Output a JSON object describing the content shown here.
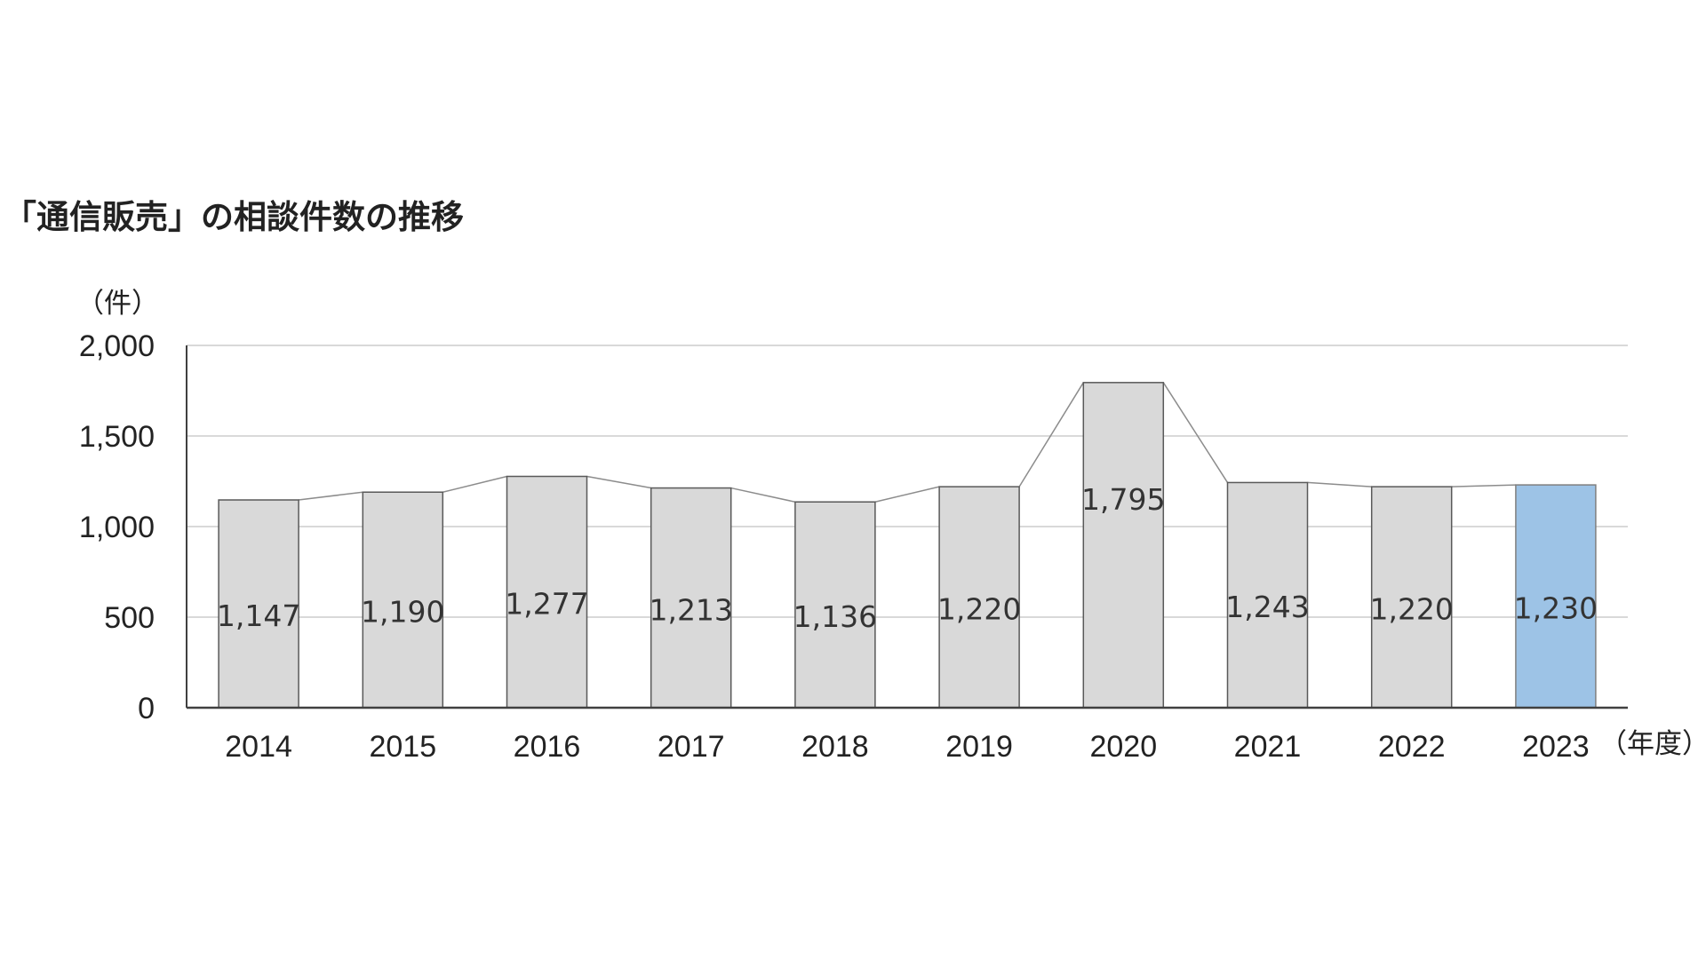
{
  "title": "「通信販売」の相談件数の推移",
  "chart_data": {
    "type": "bar",
    "title": "「通信販売」の相談件数の推移",
    "ylabel": "（件）",
    "xlabel": "（年度）",
    "categories": [
      "2014",
      "2015",
      "2016",
      "2017",
      "2018",
      "2019",
      "2020",
      "2021",
      "2022",
      "2023"
    ],
    "values": [
      1147,
      1190,
      1277,
      1213,
      1136,
      1220,
      1795,
      1243,
      1220,
      1230
    ],
    "data_labels": [
      "1,147",
      "1,190",
      "1,277",
      "1,213",
      "1,136",
      "1,220",
      "1,795",
      "1,243",
      "1,220",
      "1,230"
    ],
    "ylim": [
      0,
      2000
    ],
    "yticks": [
      0,
      500,
      1000,
      1500,
      2000
    ],
    "ytick_labels": [
      "0",
      "500",
      "1,000",
      "1,500",
      "2,000"
    ],
    "grid": true,
    "connector_lines": true,
    "colors": {
      "bar": "#d9d9d9",
      "bar_highlight": "#9dc3e6",
      "bar_border": "#595959",
      "highlight_border": "#7f7f7f",
      "grid": "#d9d9d9",
      "axis": "#404040",
      "connector": "#8c8c8c"
    },
    "highlight_category": "2023"
  }
}
